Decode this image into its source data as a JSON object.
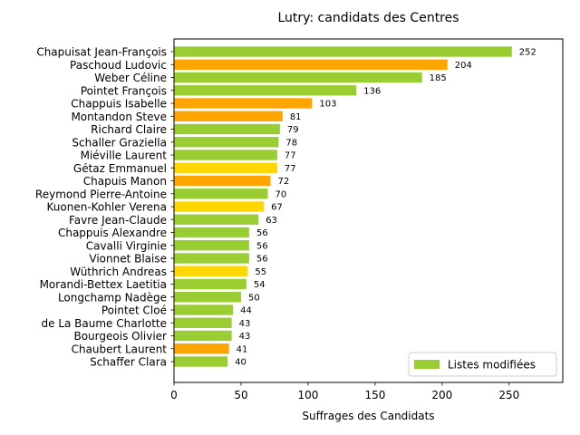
{
  "chart_data": {
    "type": "bar",
    "orientation": "horizontal",
    "title": "Lutry: candidats des Centres",
    "xlabel": "Suffrages des Candidats",
    "ylabel": "",
    "xlim": [
      0,
      290
    ],
    "xticks": [
      0,
      50,
      100,
      150,
      200,
      250
    ],
    "grid": false,
    "legend": {
      "placement": "lower-right",
      "label": "Listes modifiées",
      "color": "#9ACD32"
    },
    "colors": {
      "green": "#9ACD32",
      "orange": "#FFA500",
      "yellow": "#FFD700"
    },
    "bars": [
      {
        "name": "Chapuisat Jean-François",
        "value": 252,
        "color": "green"
      },
      {
        "name": "Paschoud Ludovic",
        "value": 204,
        "color": "orange"
      },
      {
        "name": "Weber Céline",
        "value": 185,
        "color": "green"
      },
      {
        "name": "Pointet François",
        "value": 136,
        "color": "green"
      },
      {
        "name": "Chappuis Isabelle",
        "value": 103,
        "color": "orange"
      },
      {
        "name": "Montandon Steve",
        "value": 81,
        "color": "orange"
      },
      {
        "name": "Richard Claire",
        "value": 79,
        "color": "green"
      },
      {
        "name": "Schaller Graziella",
        "value": 78,
        "color": "green"
      },
      {
        "name": "Miéville Laurent",
        "value": 77,
        "color": "green"
      },
      {
        "name": "Gétaz Emmanuel",
        "value": 77,
        "color": "yellow"
      },
      {
        "name": "Chapuis Manon",
        "value": 72,
        "color": "orange"
      },
      {
        "name": "Reymond Pierre-Antoine",
        "value": 70,
        "color": "green"
      },
      {
        "name": "Kuonen-Kohler Verena",
        "value": 67,
        "color": "yellow"
      },
      {
        "name": "Favre Jean-Claude",
        "value": 63,
        "color": "green"
      },
      {
        "name": "Chappuis Alexandre",
        "value": 56,
        "color": "green"
      },
      {
        "name": "Cavalli Virginie",
        "value": 56,
        "color": "green"
      },
      {
        "name": "Vionnet Blaise",
        "value": 56,
        "color": "green"
      },
      {
        "name": "Wüthrich Andreas",
        "value": 55,
        "color": "yellow"
      },
      {
        "name": "Morandi-Bettex Laetitia",
        "value": 54,
        "color": "green"
      },
      {
        "name": "Longchamp Nadège",
        "value": 50,
        "color": "green"
      },
      {
        "name": "Pointet Cloé",
        "value": 44,
        "color": "green"
      },
      {
        "name": "de La Baume Charlotte",
        "value": 43,
        "color": "green"
      },
      {
        "name": "Bourgeois Olivier",
        "value": 43,
        "color": "green"
      },
      {
        "name": "Chaubert Laurent",
        "value": 41,
        "color": "orange"
      },
      {
        "name": "Schaffer Clara",
        "value": 40,
        "color": "green"
      }
    ]
  }
}
